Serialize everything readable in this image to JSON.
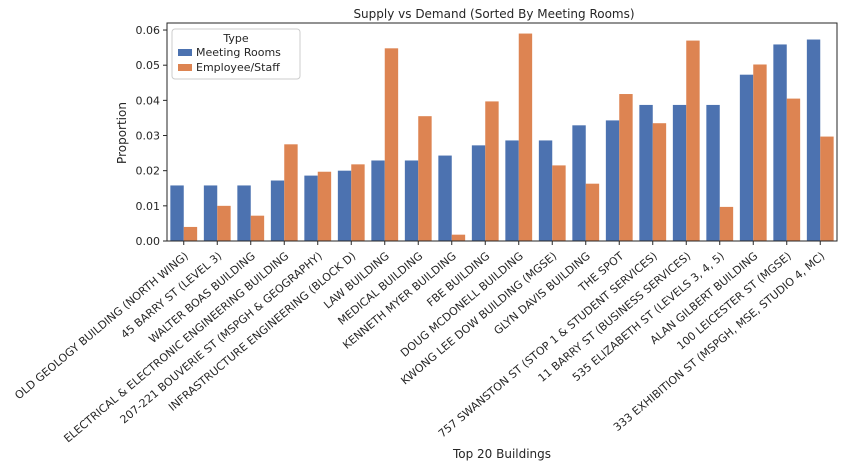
{
  "chart_data": {
    "type": "bar",
    "title": "Supply vs Demand (Sorted By Meeting Rooms)",
    "xlabel": "Top 20 Buildings",
    "ylabel": "Proportion",
    "ylim": [
      0,
      0.062
    ],
    "yticks": [
      "0.00",
      "0.01",
      "0.02",
      "0.03",
      "0.04",
      "0.05",
      "0.06"
    ],
    "grid": false,
    "legend": {
      "title": "Type",
      "position": "top-left"
    },
    "categories": [
      "OLD GEOLOGY BUILDING (NORTH WING)",
      "45 BARRY ST (LEVEL 3)",
      "WALTER BOAS BUILDING",
      "ELECTRICAL & ELECTRONIC ENGINEERING BUILDING",
      "207-221 BOUVERIE ST (MSPGH & GEOGRAPHY)",
      "INFRASTRUCTURE ENGINEERING (BLOCK D)",
      "LAW BUILDING",
      "MEDICAL BUILDING",
      "KENNETH MYER BUILDING",
      "FBE BUILDING",
      "DOUG MCDONELL BUILDING",
      "KWONG LEE DOW BUILDING (MGSE)",
      "GLYN DAVIS BUILDING",
      "THE SPOT",
      "757 SWANSTON ST (STOP 1 & STUDENT SERVICES)",
      "11 BARRY ST (BUSINESS SERVICES)",
      "535 ELIZABETH ST (LEVELS 3, 4, 5)",
      "ALAN GILBERT BUILDING",
      "100 LEICESTER ST (MGSE)",
      "333 EXHIBITION ST (MSPGH, MSE, STUDIO 4, MC)"
    ],
    "series": [
      {
        "name": "Meeting Rooms",
        "color": "#4c72b0",
        "values": [
          0.0158,
          0.0158,
          0.0158,
          0.0172,
          0.0186,
          0.02,
          0.0229,
          0.0229,
          0.0243,
          0.0272,
          0.0286,
          0.0286,
          0.0329,
          0.0343,
          0.0387,
          0.0387,
          0.0387,
          0.0473,
          0.0559,
          0.0573
        ]
      },
      {
        "name": "Employee/Staff",
        "color": "#dd8452",
        "values": [
          0.004,
          0.01,
          0.0072,
          0.0275,
          0.0197,
          0.0218,
          0.0548,
          0.0355,
          0.0018,
          0.0397,
          0.059,
          0.0215,
          0.0163,
          0.0418,
          0.0335,
          0.057,
          0.0097,
          0.0502,
          0.0405,
          0.0297
        ]
      }
    ]
  }
}
